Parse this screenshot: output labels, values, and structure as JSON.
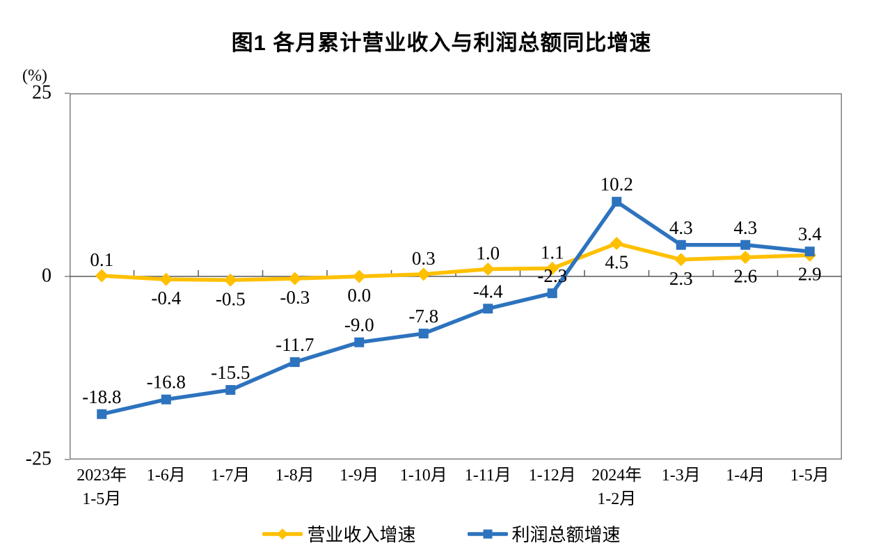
{
  "title": "图1  各月累计营业收入与利润总额同比增速",
  "unit_label": "(%)",
  "axis_color": "#7F7F7F",
  "zero_line_color": "#595959",
  "chart_data": {
    "type": "line",
    "title": "图1  各月累计营业收入与利润总额同比增速",
    "ylabel": "(%)",
    "xlabel": "",
    "ylim": [
      -25,
      25
    ],
    "yticks": [
      25,
      0,
      -25
    ],
    "grid": false,
    "legend_position": "bottom",
    "categories": [
      "2023年\n1-5月",
      "1-6月",
      "1-7月",
      "1-8月",
      "1-9月",
      "1-10月",
      "1-11月",
      "1-12月",
      "2024年\n1-2月",
      "1-3月",
      "1-4月",
      "1-5月"
    ],
    "series": [
      {
        "name": "营业收入增速",
        "color": "#FFC000",
        "marker": "diamond",
        "values": [
          0.1,
          -0.4,
          -0.5,
          -0.3,
          0.0,
          0.3,
          1.0,
          1.1,
          4.5,
          2.3,
          2.6,
          2.9
        ],
        "label_pos": [
          "above",
          "below",
          "below",
          "below",
          "below",
          "above",
          "above",
          "above",
          "below",
          "below",
          "below",
          "below"
        ]
      },
      {
        "name": "利润总额增速",
        "color": "#2D73BE",
        "marker": "square",
        "values": [
          -18.8,
          -16.8,
          -15.5,
          -11.7,
          -9.0,
          -7.8,
          -4.4,
          -2.3,
          10.2,
          4.3,
          4.3,
          3.4
        ],
        "label_pos": [
          "above",
          "above",
          "above",
          "above",
          "above",
          "above",
          "above",
          "above",
          "above",
          "above",
          "above",
          "above"
        ]
      }
    ]
  }
}
